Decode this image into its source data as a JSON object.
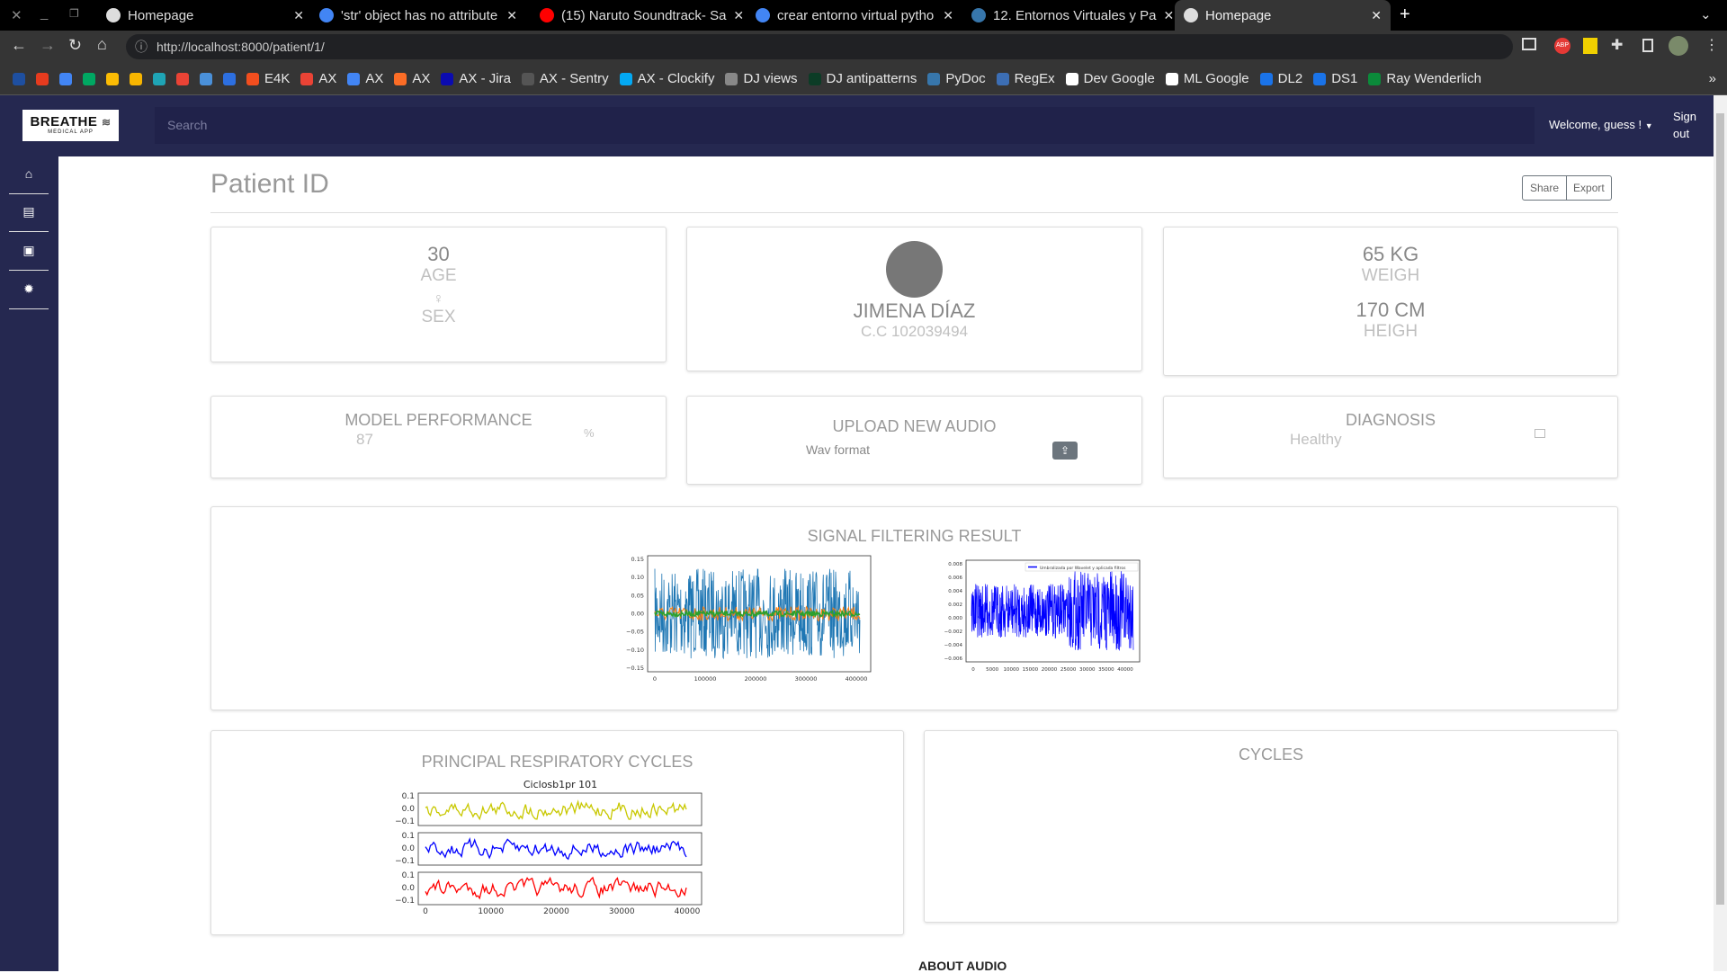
{
  "browser": {
    "tabs": [
      {
        "title": "Homepage",
        "icon": "globe-icon",
        "color": "#ddd",
        "active": false
      },
      {
        "title": "'str' object has no attribute",
        "icon": "google-icon",
        "color": "#4285f4",
        "active": false
      },
      {
        "title": "(15) Naruto Soundtrack- Sa",
        "icon": "youtube-icon",
        "color": "#ff0000",
        "active": false
      },
      {
        "title": "crear entorno virtual pytho",
        "icon": "google-icon",
        "color": "#4285f4",
        "active": false
      },
      {
        "title": "12. Entornos Virtuales y Pa",
        "icon": "python-icon",
        "color": "#3776ab",
        "active": false
      },
      {
        "title": "Homepage",
        "icon": "globe-icon",
        "color": "#ddd",
        "active": true
      }
    ],
    "url": "http://localhost:8000/patient/1/",
    "bookmarks": [
      {
        "label": "",
        "color": "#1e4fa0"
      },
      {
        "label": "",
        "color": "#e63b1e"
      },
      {
        "label": "",
        "color": "#4285f4"
      },
      {
        "label": "",
        "color": "#00a862"
      },
      {
        "label": "",
        "color": "#fbbc04"
      },
      {
        "label": "",
        "color": "#f7b500"
      },
      {
        "label": "",
        "color": "#1fa4b5"
      },
      {
        "label": "",
        "color": "#ea4335"
      },
      {
        "label": "",
        "color": "#4a90d9"
      },
      {
        "label": "",
        "color": "#2d6fe0"
      },
      {
        "label": "E4K",
        "color": "#f24e1e"
      },
      {
        "label": "AX",
        "color": "#ea4335"
      },
      {
        "label": "AX",
        "color": "#4285f4"
      },
      {
        "label": "AX",
        "color": "#fc6d26"
      },
      {
        "label": "AX - Jira",
        "color": "#0b0bb0"
      },
      {
        "label": "AX - Sentry",
        "color": "#555"
      },
      {
        "label": "AX - Clockify",
        "color": "#03a9f4"
      },
      {
        "label": "DJ views",
        "color": "#888"
      },
      {
        "label": "DJ antipatterns",
        "color": "#0c3c26"
      },
      {
        "label": "PyDoc",
        "color": "#3776ab"
      },
      {
        "label": "RegEx",
        "color": "#3c6eb4"
      },
      {
        "label": "Dev Google",
        "color": "#fff"
      },
      {
        "label": "ML Google",
        "color": "#fff"
      },
      {
        "label": "DL2",
        "color": "#1a73e8"
      },
      {
        "label": "DS1",
        "color": "#1a73e8"
      },
      {
        "label": "Ray Wenderlich",
        "color": "#0b8a3a"
      }
    ],
    "more": "»"
  },
  "header": {
    "logo_text": "BREATHE",
    "logo_sub": "MEDICAL APP",
    "search_placeholder": "Search",
    "welcome": "Welcome, guess !",
    "sign_out": "Sign out"
  },
  "sidebar": {
    "items": [
      {
        "icon": "home-icon",
        "glyph": "⌂"
      },
      {
        "icon": "clipboard-chart-icon",
        "glyph": "▤"
      },
      {
        "icon": "clipboard-pulse-icon",
        "glyph": "▣"
      },
      {
        "icon": "gear-icon",
        "glyph": "✹"
      }
    ]
  },
  "page": {
    "title": "Patient ID",
    "share": "Share",
    "export": "Export",
    "about_audio": "ABOUT AUDIO"
  },
  "patient": {
    "age": "30",
    "age_label": "AGE",
    "sex_symbol": "♀",
    "sex_label": "SEX",
    "name": "JIMENA DÍAZ",
    "cc": "C.C 102039494",
    "weight": "65 KG",
    "weight_label": "WEIGH",
    "height": "170 CM",
    "height_label": "HEIGH"
  },
  "model": {
    "title": "MODEL PERFORMANCE",
    "value": "87",
    "unit": "%"
  },
  "upload": {
    "title": "UPLOAD NEW AUDIO",
    "format": "Wav format"
  },
  "diagnosis": {
    "title": "DIAGNOSIS",
    "value": "Healthy"
  },
  "signal": {
    "title": "SIGNAL FILTERING RESULT",
    "plot1": {
      "yticks": [
        "0.15",
        "0.10",
        "0.05",
        "0.00",
        "−0.05",
        "−0.10",
        "−0.15"
      ],
      "xticks": [
        "0",
        "100000",
        "200000",
        "300000",
        "400000"
      ],
      "colors": [
        "#1f77b4",
        "#ff7f0e",
        "#2ca02c"
      ]
    },
    "plot2": {
      "yticks": [
        "0.008",
        "0.006",
        "0.004",
        "0.002",
        "0.000",
        "−0.002",
        "−0.004",
        "−0.006"
      ],
      "xticks": [
        "0",
        "5000",
        "10000",
        "15000",
        "20000",
        "25000",
        "30000",
        "35000",
        "40000"
      ],
      "legend": "Umbralizada por Wavelet y aplicada filtros",
      "color": "#0000ff"
    }
  },
  "cycles": {
    "title": "PRINCIPAL RESPIRATORY CYCLES",
    "plot_title": "Ciclosb1pr 101",
    "yticks": [
      "0.1",
      "0.0",
      "−0.1"
    ],
    "xticks": [
      "0",
      "10000",
      "20000",
      "30000",
      "40000"
    ],
    "colors": [
      "#c8c800",
      "#0000ff",
      "#ff0000"
    ]
  },
  "cycles_right": {
    "title": "CYCLES"
  }
}
